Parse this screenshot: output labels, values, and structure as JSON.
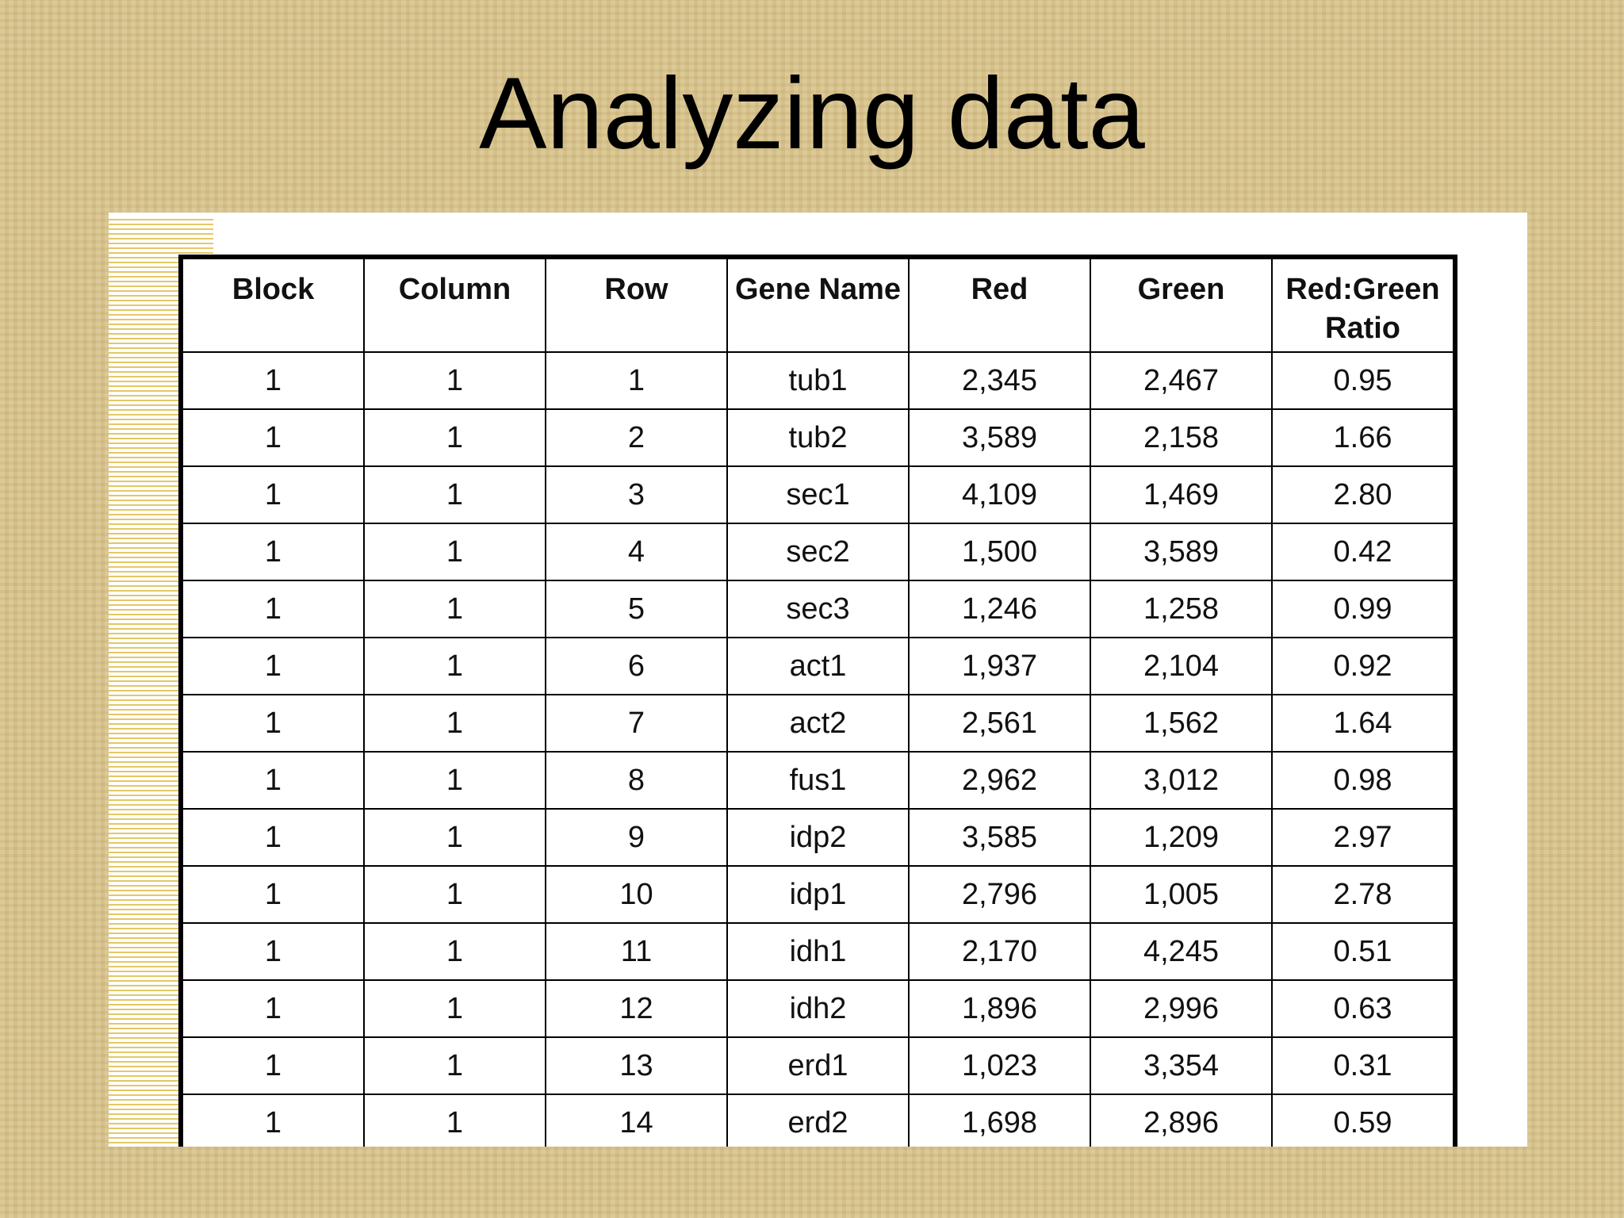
{
  "header": {
    "title": "Analyzing data"
  },
  "table": {
    "columns": [
      "Block",
      "Column",
      "Row",
      "Gene Name",
      "Red",
      "Green",
      "Red:Green Ratio"
    ],
    "rows": [
      [
        "1",
        "1",
        "1",
        "tub1",
        "2,345",
        "2,467",
        "0.95"
      ],
      [
        "1",
        "1",
        "2",
        "tub2",
        "3,589",
        "2,158",
        "1.66"
      ],
      [
        "1",
        "1",
        "3",
        "sec1",
        "4,109",
        "1,469",
        "2.80"
      ],
      [
        "1",
        "1",
        "4",
        "sec2",
        "1,500",
        "3,589",
        "0.42"
      ],
      [
        "1",
        "1",
        "5",
        "sec3",
        "1,246",
        "1,258",
        "0.99"
      ],
      [
        "1",
        "1",
        "6",
        "act1",
        "1,937",
        "2,104",
        "0.92"
      ],
      [
        "1",
        "1",
        "7",
        "act2",
        "2,561",
        "1,562",
        "1.64"
      ],
      [
        "1",
        "1",
        "8",
        "fus1",
        "2,962",
        "3,012",
        "0.98"
      ],
      [
        "1",
        "1",
        "9",
        "idp2",
        "3,585",
        "1,209",
        "2.97"
      ],
      [
        "1",
        "1",
        "10",
        "idp1",
        "2,796",
        "1,005",
        "2.78"
      ],
      [
        "1",
        "1",
        "11",
        "idh1",
        "2,170",
        "4,245",
        "0.51"
      ],
      [
        "1",
        "1",
        "12",
        "idh2",
        "1,896",
        "2,996",
        "0.63"
      ],
      [
        "1",
        "1",
        "13",
        "erd1",
        "1,023",
        "3,354",
        "0.31"
      ],
      [
        "1",
        "1",
        "14",
        "erd2",
        "1,698",
        "2,896",
        "0.59"
      ]
    ]
  }
}
